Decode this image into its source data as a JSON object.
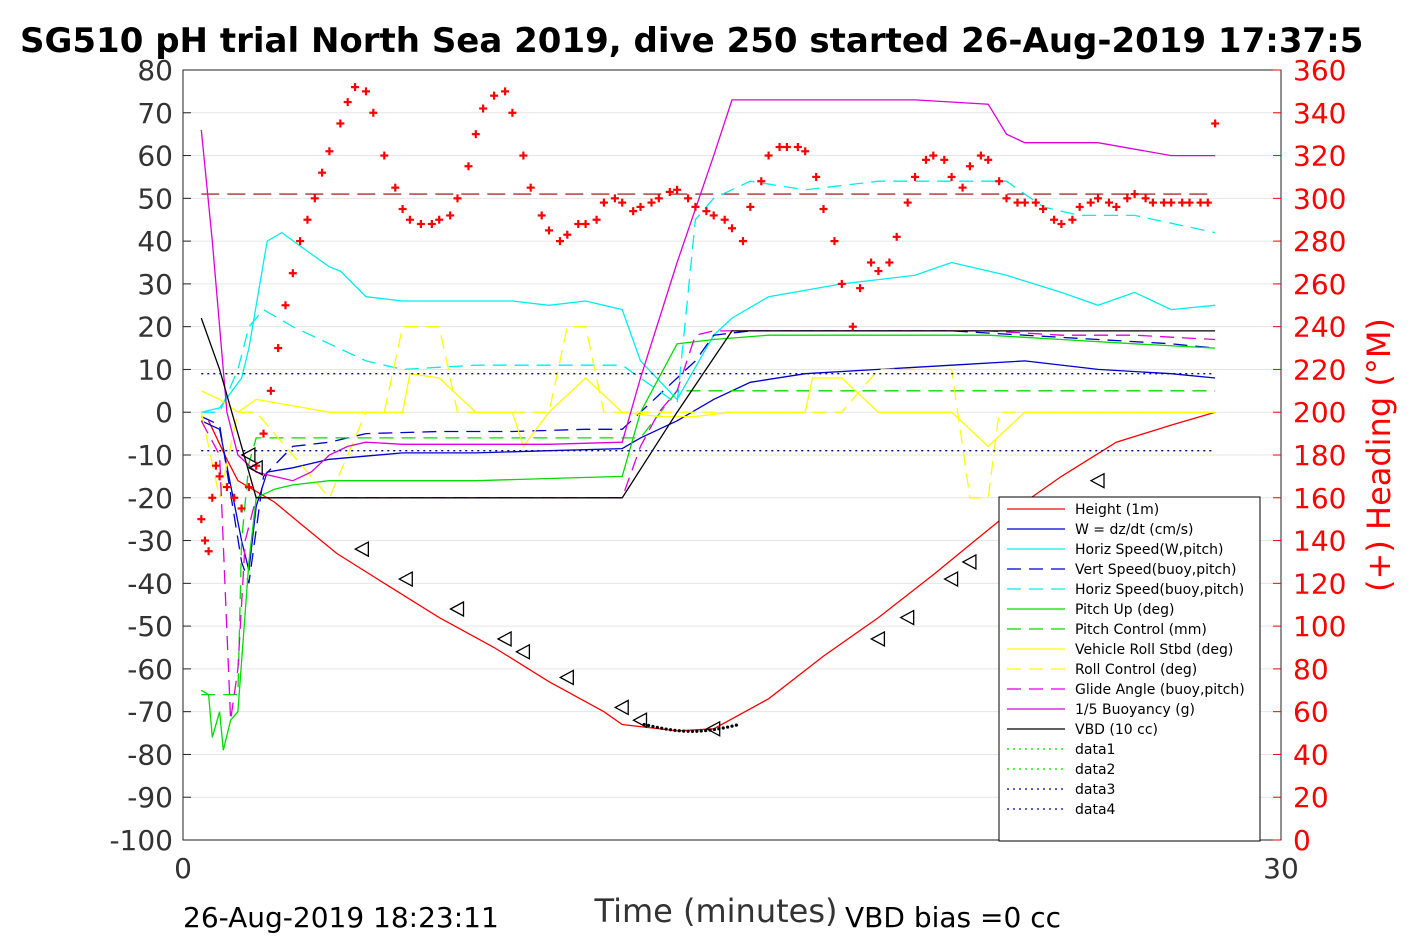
{
  "chart_data": {
    "type": "line",
    "title": "SG510 pH trial North Sea 2019, dive 250 started 26-Aug-2019 17:37:5",
    "xlabel": "Time (minutes)",
    "ylabel_right": "(+) Heading (°M)",
    "xlim": [
      0,
      30
    ],
    "ylim": [
      -100,
      80
    ],
    "ylim_right": [
      0,
      360
    ],
    "x_ticks": [
      "0",
      "30"
    ],
    "y_ticks": [
      "80",
      "70",
      "60",
      "50",
      "40",
      "30",
      "20",
      "10",
      "0",
      "-10",
      "-20",
      "-30",
      "-40",
      "-50",
      "-60",
      "-70",
      "-80",
      "-90",
      "-100"
    ],
    "y_ticks_right": [
      "360",
      "340",
      "320",
      "300",
      "280",
      "260",
      "240",
      "220",
      "200",
      "180",
      "160",
      "140",
      "120",
      "100",
      "80",
      "60",
      "40",
      "20",
      "0"
    ],
    "grid": true,
    "legend_position": "bottom-right",
    "footer_left": "26-Aug-2019 18:23:11",
    "footer_right": "VBD bias =0 cc",
    "colors": {
      "red": "#ff0000",
      "blue": "#0000cc",
      "cyan": "#00eeee",
      "green": "#00dd00",
      "yellow": "#ffff00",
      "magenta": "#dd00dd",
      "black": "#000000",
      "darkred": "#990000",
      "navy": "#000080"
    },
    "series": [
      {
        "name": "Height (1m)",
        "color": "red",
        "dash": "solid",
        "x": [
          0.7,
          1.2,
          1.5,
          2.5,
          3.2,
          4.2,
          5.5,
          7,
          8.5,
          10,
          11.5,
          12,
          13.5,
          14.5,
          16,
          17.5,
          19,
          20.5,
          21.5,
          22.5,
          24,
          25.5,
          27,
          28.2
        ],
        "y": [
          -2,
          -11,
          -16,
          -21,
          -26,
          -33,
          -40,
          -48,
          -55,
          -63,
          -70,
          -73,
          -74.5,
          -74,
          -67,
          -57,
          -48,
          -38,
          -31,
          -24,
          -15,
          -7,
          -3,
          0
        ]
      },
      {
        "name": "W = dz/dt (cm/s)",
        "color": "blue",
        "dash": "solid",
        "x": [
          0.5,
          1,
          1.6,
          1.8,
          2,
          2.3,
          3,
          4,
          6,
          8,
          10,
          12,
          12.5,
          13.5,
          14.5,
          15.5,
          17,
          19,
          21,
          23,
          25,
          27,
          28.2
        ],
        "y": [
          -2,
          -4,
          -30,
          -37,
          -22,
          -14,
          -13,
          -11,
          -9.5,
          -9.5,
          -9,
          -8.5,
          -6,
          -2,
          3,
          7,
          9,
          10,
          11,
          12,
          10,
          9,
          8
        ]
      },
      {
        "name": "Horiz Speed(W,pitch)",
        "color": "cyan",
        "dash": "solid",
        "x": [
          0.5,
          1,
          1.6,
          1.8,
          2,
          2.3,
          2.7,
          3.5,
          4,
          4.3,
          5,
          6,
          7,
          8,
          9,
          10,
          11,
          12,
          12.5,
          13.5,
          14.5,
          15,
          16,
          18,
          20,
          21,
          22.5,
          24,
          25,
          26,
          27,
          28.2
        ],
        "y": [
          0,
          1,
          8,
          15,
          25,
          40,
          42,
          37,
          34,
          33,
          27,
          26,
          26,
          26,
          26,
          25,
          26,
          24,
          12,
          3,
          18,
          22,
          27,
          30,
          32,
          35,
          32,
          28,
          25,
          28,
          24,
          25
        ]
      },
      {
        "name": "Vert Speed(buoy,pitch)",
        "color": "blue",
        "dash": "dash",
        "x": [
          0.5,
          1,
          1.6,
          1.8,
          2.2,
          3,
          4,
          5,
          7,
          9,
          11,
          12,
          13.5,
          14,
          14.5,
          15.5,
          17,
          19,
          21,
          23,
          25,
          27,
          28.2
        ],
        "y": [
          -1,
          -3,
          -35,
          -40,
          -15,
          -8,
          -7,
          -5,
          -4.5,
          -4.5,
          -4,
          -4,
          8,
          12,
          18,
          19,
          19,
          19,
          19,
          18,
          17,
          16,
          15
        ]
      },
      {
        "name": "Horiz Speed(buoy,pitch)",
        "color": "cyan",
        "dash": "dash",
        "x": [
          0.5,
          1,
          1.5,
          1.8,
          2.2,
          3,
          4,
          5,
          6,
          8,
          10,
          12,
          13.5,
          14,
          14.5,
          15.5,
          17,
          19,
          21,
          22.5,
          23.5,
          24.5,
          26,
          28.2
        ],
        "y": [
          0,
          0,
          10,
          20,
          24,
          20,
          16,
          12,
          10,
          11,
          11,
          11,
          2,
          45,
          50,
          54,
          52,
          54,
          54,
          54,
          48,
          46,
          46,
          42
        ]
      },
      {
        "name": "Pitch Up (deg)",
        "color": "green",
        "dash": "solid",
        "x": [
          0.5,
          0.7,
          0.8,
          1,
          1.1,
          1.3,
          1.5,
          1.8,
          2,
          2.5,
          3,
          4,
          6,
          8,
          10,
          12,
          12.5,
          13.5,
          14.5,
          16,
          18,
          20,
          22,
          24,
          26,
          28.2
        ],
        "y": [
          -65,
          -66,
          -76,
          -70,
          -79,
          -72,
          -70,
          -35,
          -20,
          -18,
          -17,
          -16,
          -16,
          -16,
          -15.5,
          -15,
          0,
          16,
          17,
          18,
          18,
          18,
          18,
          17,
          16,
          15
        ]
      },
      {
        "name": "Pitch Control (mm)",
        "color": "green",
        "dash": "dash",
        "x": [
          0.5,
          1,
          1.5,
          1.6,
          1.8,
          2,
          2.5,
          12,
          12.5,
          13.5,
          14.5,
          28.2
        ],
        "y": [
          -66,
          -66,
          -66,
          -30,
          -12,
          -6,
          -6,
          -6,
          -6,
          5,
          5,
          5
        ]
      },
      {
        "name": "Vehicle Roll Stbd (deg)",
        "color": "yellow",
        "dash": "solid",
        "x": [
          0.5,
          1,
          1.5,
          2,
          4,
          5,
          6,
          6.2,
          7,
          8,
          9,
          9.3,
          10,
          11,
          12,
          13,
          14,
          15,
          17,
          17.2,
          18,
          19,
          20,
          21,
          22,
          23,
          24,
          26,
          28.2
        ],
        "y": [
          5,
          3,
          0,
          3,
          0,
          0,
          0,
          9,
          8,
          0,
          0,
          -8,
          0,
          8,
          0,
          -1,
          -1,
          0,
          0,
          8,
          8,
          0,
          0,
          0,
          -8,
          0,
          0,
          0,
          0
        ]
      },
      {
        "name": "Roll Control (deg)",
        "color": "yellow",
        "dash": "dash",
        "x": [
          0.5,
          1,
          1.5,
          2,
          4,
          5,
          5.5,
          6,
          7,
          7.5,
          8,
          9.5,
          10,
          10.5,
          11,
          11.5,
          12,
          14,
          18,
          19,
          21,
          21.5,
          22,
          22.3,
          23,
          24,
          28.2
        ],
        "y": [
          0,
          -20,
          0,
          0,
          -20,
          0,
          0,
          20,
          20,
          0,
          0,
          0,
          0,
          20,
          20,
          0,
          0,
          0,
          0,
          10,
          10,
          -20,
          -20,
          0,
          0,
          0,
          0
        ]
      },
      {
        "name": "Glide Angle (buoy,pitch)",
        "color": "magenta",
        "dash": "dash",
        "x": [
          0.5,
          1,
          1.3,
          1.5,
          1.7,
          2,
          2.5,
          4,
          6,
          8,
          10,
          12,
          12.5,
          13,
          13.5,
          14,
          14.5,
          16,
          18,
          20,
          22,
          24,
          26,
          28.2
        ],
        "y": [
          -2,
          -10,
          -72,
          -60,
          -30,
          -20,
          -20,
          -20,
          -20,
          -20,
          -20,
          -20,
          -8,
          0,
          5,
          18,
          19,
          19,
          19,
          19,
          19,
          18,
          18,
          17
        ]
      },
      {
        "name": "1/5 Buoyancy (g)",
        "color": "magenta",
        "dash": "solid",
        "x": [
          0.5,
          0.8,
          1.2,
          1.5,
          2,
          3,
          3.5,
          4,
          4.5,
          5,
          6,
          8,
          10,
          12,
          12.5,
          13.5,
          14.5,
          15,
          16,
          18,
          20,
          22,
          22.5,
          23,
          25,
          27,
          28.2
        ],
        "y": [
          66,
          40,
          0,
          -10,
          -14,
          -16,
          -14,
          -10,
          -8,
          -7,
          -7.5,
          -7.5,
          -7.5,
          -7,
          8,
          35,
          60,
          73,
          73,
          73,
          73,
          72,
          65,
          63,
          63,
          60,
          60
        ]
      },
      {
        "name": "VBD (10 cc)",
        "color": "black",
        "dash": "solid",
        "x": [
          0.5,
          1,
          1.5,
          2,
          4,
          6,
          8,
          10,
          12,
          13.5,
          15,
          16.5,
          28.2
        ],
        "y": [
          22,
          10,
          -5,
          -20,
          -20,
          -20,
          -20,
          -20,
          -20,
          0,
          19,
          19,
          19
        ]
      },
      {
        "name": "data1",
        "color": "green",
        "dash": "dot",
        "x": [
          0.5,
          28.2
        ],
        "y": [
          null,
          null
        ]
      },
      {
        "name": "data2",
        "color": "green",
        "dash": "dot",
        "x": [
          0.5,
          28.2
        ],
        "y": [
          null,
          null
        ]
      },
      {
        "name": "data3",
        "color": "navy",
        "dash": "dot",
        "x": [
          0.5,
          28.2
        ],
        "y": [
          9,
          9
        ]
      },
      {
        "name": "data4",
        "color": "navy",
        "dash": "dot",
        "x": [
          0.5,
          28.2
        ],
        "y": [
          -9,
          -9
        ]
      }
    ],
    "reference_lines": [
      {
        "color": "darkred",
        "dash": "longdash",
        "y": 51
      }
    ],
    "heading_points": {
      "axis": "right",
      "color": "red",
      "marker": "+",
      "x": [
        0.5,
        0.6,
        0.7,
        0.8,
        0.9,
        1.0,
        1.2,
        1.4,
        1.6,
        1.8,
        2.0,
        2.2,
        2.4,
        2.6,
        2.8,
        3.0,
        3.2,
        3.4,
        3.6,
        3.8,
        4.0,
        4.3,
        4.5,
        4.7,
        5.0,
        5.2,
        5.5,
        5.8,
        6.0,
        6.2,
        6.5,
        6.8,
        7.0,
        7.3,
        7.5,
        7.8,
        8.0,
        8.2,
        8.5,
        8.8,
        9.0,
        9.3,
        9.5,
        9.8,
        10.0,
        10.3,
        10.5,
        10.8,
        11.0,
        11.3,
        11.5,
        11.8,
        12.0,
        12.3,
        12.5,
        12.8,
        13.0,
        13.3,
        13.5,
        13.8,
        14.0,
        14.3,
        14.5,
        14.8,
        15.0,
        15.3,
        15.5,
        15.8,
        16.0,
        16.3,
        16.5,
        16.8,
        17.0,
        17.3,
        17.5,
        17.8,
        18.0,
        18.3,
        18.5,
        18.8,
        19.0,
        19.3,
        19.5,
        19.8,
        20.0,
        20.3,
        20.5,
        20.8,
        21.0,
        21.3,
        21.5,
        21.8,
        22.0,
        22.3,
        22.5,
        22.8,
        23.0,
        23.3,
        23.5,
        23.8,
        24.0,
        24.3,
        24.5,
        24.8,
        25.0,
        25.3,
        25.5,
        25.8,
        26.0,
        26.3,
        26.5,
        26.8,
        27.0,
        27.3,
        27.5,
        27.8,
        28.0,
        28.2
      ],
      "y": [
        150,
        140,
        135,
        160,
        175,
        170,
        165,
        160,
        155,
        165,
        175,
        190,
        210,
        230,
        250,
        265,
        280,
        290,
        300,
        312,
        322,
        335,
        345,
        352,
        350,
        340,
        320,
        305,
        295,
        290,
        288,
        288,
        290,
        292,
        300,
        315,
        330,
        342,
        348,
        350,
        340,
        320,
        305,
        292,
        285,
        280,
        283,
        288,
        288,
        290,
        298,
        300,
        298,
        294,
        296,
        298,
        300,
        303,
        304,
        300,
        296,
        294,
        292,
        290,
        286,
        280,
        296,
        308,
        320,
        324,
        324,
        324,
        322,
        310,
        295,
        280,
        260,
        240,
        258,
        270,
        266,
        270,
        282,
        298,
        310,
        318,
        320,
        318,
        310,
        305,
        315,
        320,
        318,
        308,
        300,
        298,
        298,
        298,
        295,
        290,
        288,
        290,
        296,
        298,
        300,
        298,
        296,
        300,
        302,
        300,
        298,
        298,
        298,
        298,
        298,
        298,
        298,
        335
      ]
    },
    "descent_markers": {
      "marker": "triangle-left",
      "x": [
        1.8,
        2.0,
        4.9,
        6.1,
        7.5,
        8.8,
        9.3,
        10.5,
        12,
        12.5,
        14.5,
        19,
        19.8,
        21,
        21.5,
        23,
        25
      ],
      "y": [
        -10,
        -13,
        -32,
        -39,
        -46,
        -53,
        -56,
        -62,
        -69,
        -72,
        -74,
        -53,
        -48,
        -39,
        -35,
        -26,
        -16
      ]
    }
  }
}
